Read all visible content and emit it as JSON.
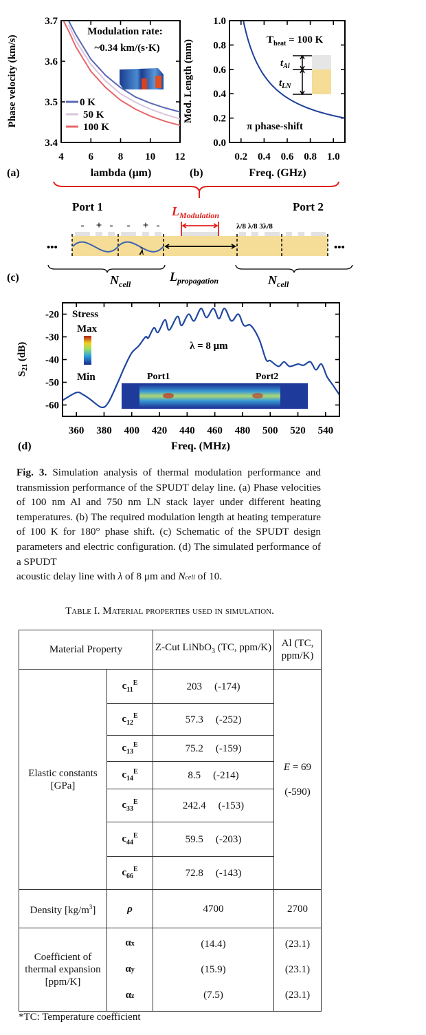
{
  "chart_data": [
    {
      "panel": "(a)",
      "type": "line",
      "xlabel": "lambda (μm)",
      "ylabel": "Phase velocity (km/s)",
      "xlim": [
        4,
        12
      ],
      "ylim": [
        3.4,
        3.7
      ],
      "xticks": [
        "4",
        "6",
        "8",
        "10",
        "12"
      ],
      "yticks": [
        "3.4",
        "3.5",
        "3.6",
        "3.7"
      ],
      "annotation": [
        "Modulation rate:",
        "~0.34 km/(s·K)"
      ],
      "legend_position": "bottom-left",
      "x": [
        4.15,
        4.5,
        5,
        6,
        7,
        8,
        9,
        10,
        11,
        12
      ],
      "series": [
        {
          "name": "0 K",
          "color": "#5a68b5",
          "values": [
            null,
            3.7,
            3.665,
            3.605,
            3.565,
            3.535,
            3.512,
            3.497,
            3.485,
            3.475
          ]
        },
        {
          "name": "50 K",
          "color": "#d9c4dc",
          "values": [
            null,
            3.69,
            3.65,
            3.592,
            3.551,
            3.52,
            3.499,
            3.482,
            3.469,
            3.458
          ]
        },
        {
          "name": "100 K",
          "color": "#e8676a",
          "values": [
            3.7,
            3.675,
            3.635,
            3.575,
            3.535,
            3.504,
            3.482,
            3.465,
            3.452,
            3.442
          ]
        }
      ]
    },
    {
      "panel": "(b)",
      "type": "line",
      "xlabel": "Freq. (GHz)",
      "ylabel": "Mod. Length (mm)",
      "xlim": [
        0.1,
        1.1
      ],
      "ylim": [
        0,
        1.0
      ],
      "xticks": [
        "0.2",
        "0.4",
        "0.6",
        "0.8",
        "1.0"
      ],
      "yticks": [
        "0.0",
        "0.2",
        "0.4",
        "0.6",
        "0.8",
        "1.0"
      ],
      "annotation_main": "T",
      "annotation_sub": "heat",
      "annotation_rest": " = 100 K",
      "annotation2": "π phase-shift",
      "inset_labels": {
        "t": "t",
        "al": "Al",
        "ln": "LN"
      },
      "series": [
        {
          "name": "Mod. Length",
          "color": "#1f3f9a",
          "x": [
            0.22,
            0.25,
            0.3,
            0.35,
            0.4,
            0.5,
            0.6,
            0.7,
            0.8,
            0.9,
            1.0,
            1.1
          ],
          "values": [
            1.0,
            0.88,
            0.733,
            0.629,
            0.55,
            0.44,
            0.367,
            0.314,
            0.275,
            0.244,
            0.22,
            0.2
          ]
        }
      ]
    },
    {
      "panel": "(d)",
      "type": "line",
      "xlabel": "Freq. (MHz)",
      "ylabel_main": "S",
      "ylabel_sub": "21",
      "ylabel_rest": " (dB)",
      "xlim": [
        350,
        550
      ],
      "ylim": [
        -65,
        -15
      ],
      "xticks": [
        "360",
        "380",
        "400",
        "420",
        "440",
        "460",
        "480",
        "500",
        "520",
        "540"
      ],
      "yticks": [
        "-60",
        "-50",
        "-40",
        "-30",
        "-20"
      ],
      "annotation": "λ = 8 μm",
      "colorbar": {
        "title": "Stress",
        "max": "Max",
        "min": "Min"
      },
      "inset_ports": [
        "Port1",
        "Port2"
      ],
      "series": [
        {
          "name": "S21",
          "color": "#2048a0",
          "x": [
            350,
            360,
            365,
            370,
            378,
            383,
            390,
            395,
            400,
            405,
            410,
            412,
            416,
            419,
            424,
            427,
            433,
            436,
            441,
            445,
            450,
            454,
            459,
            463,
            467,
            472,
            477,
            481,
            486,
            492,
            497,
            500,
            506,
            510,
            514,
            520,
            524,
            529,
            533,
            537,
            541,
            545,
            550
          ],
          "values": [
            -58,
            -54.5,
            -55.5,
            -57.5,
            -61,
            -59,
            -50,
            -43,
            -37,
            -34,
            -30,
            -30.5,
            -26,
            -28,
            -22.5,
            -27,
            -21,
            -25,
            -20,
            -23,
            -17.5,
            -21.5,
            -17.5,
            -22,
            -17.5,
            -23,
            -20,
            -25,
            -25,
            -31,
            -40,
            -40.5,
            -43,
            -41,
            -43,
            -42,
            -42.5,
            -41,
            -44.5,
            -42,
            -47.5,
            -51,
            -55.5
          ]
        }
      ]
    }
  ],
  "panel_labels": {
    "a": "(a)",
    "b": "(b)",
    "c": "(c)",
    "d": "(d)"
  },
  "schematic": {
    "port1": "Port 1",
    "port2": "Port 2",
    "l_mod_main": "L",
    "l_mod_sub": "Modulation",
    "l_prop_main": "L",
    "l_prop_sub": "propagation",
    "ncell_main": "N",
    "ncell_sub": "cell",
    "lambda": "λ",
    "polarity": [
      "-",
      "+",
      "-",
      "-",
      "+",
      "-"
    ],
    "widths": "λ/8 λ/8 3λ/8",
    "ellipsis": "•••",
    "colors": {
      "substrate": "#f5dd98",
      "electrode": "#e2e2e2",
      "wave": "#3a63b0",
      "modulation": "#e0201b"
    }
  },
  "caption": {
    "label": "Fig. 3.",
    "text": " Simulation analysis of thermal modulation performance and transmission performance of the SPUDT delay line. (a) Phase velocities of 100 nm Al and 750 nm LN stack layer under different heating temperatures. (b) The required modulation length at heating temperature of 100 K for 180° phase shift. (c) Schematic of the SPUDT design parameters and electric configuration. (d) The simulated performance of a SPUDT",
    "last_pre": "acoustic delay line with ",
    "last_lambda": "λ",
    "last_mid": " of 8 μm and ",
    "last_n": "N",
    "last_nsub": "cell",
    "last_post": " of 10."
  },
  "table": {
    "title": "Table I. Material properties used in simulation.",
    "headers": [
      "Material Property",
      "Z-Cut LiNbO",
      "3",
      " (TC, ppm/K)",
      "Al (TC, ppm/K)"
    ],
    "elastic_label": "Elastic constants [GPa]",
    "elastic_rows": [
      {
        "sym": "c",
        "sub": "11",
        "sup": "E",
        "val": "203",
        "tc": "(-174)"
      },
      {
        "sym": "c",
        "sub": "12",
        "sup": "E",
        "val": "57.3",
        "tc": "(-252)"
      },
      {
        "sym": "c",
        "sub": "13",
        "sup": "E",
        "val": "75.2",
        "tc": "(-159)"
      },
      {
        "sym": "c",
        "sub": "14",
        "sup": "E",
        "val": "8.5",
        "tc": "(-214)"
      },
      {
        "sym": "c",
        "sub": "33",
        "sup": "E",
        "val": "242.4",
        "tc": "(-153)"
      },
      {
        "sym": "c",
        "sub": "44",
        "sup": "E",
        "val": "59.5",
        "tc": "(-203)"
      },
      {
        "sym": "c",
        "sub": "66",
        "sup": "E",
        "val": "72.8",
        "tc": "(-143)"
      }
    ],
    "al_elastic": {
      "e": "E",
      "eq": " = 69",
      "tc": "(-590)"
    },
    "density": {
      "label": "Density [kg/m",
      "sup": "3",
      "close": "]",
      "sym": "ρ",
      "ln": "4700",
      "al": "2700"
    },
    "cte": {
      "label": "Coefficient of thermal expansion [ppm/K]",
      "rows": [
        {
          "sym": "α",
          "sub": "x",
          "ln": "(14.4)",
          "al": "(23.1)"
        },
        {
          "sym": "α",
          "sub": "y",
          "ln": "(15.9)",
          "al": "(23.1)"
        },
        {
          "sym": "α",
          "sub": "z",
          "ln": "(7.5)",
          "al": "(23.1)"
        }
      ]
    },
    "footnote": "*TC: Temperature coefficient"
  }
}
